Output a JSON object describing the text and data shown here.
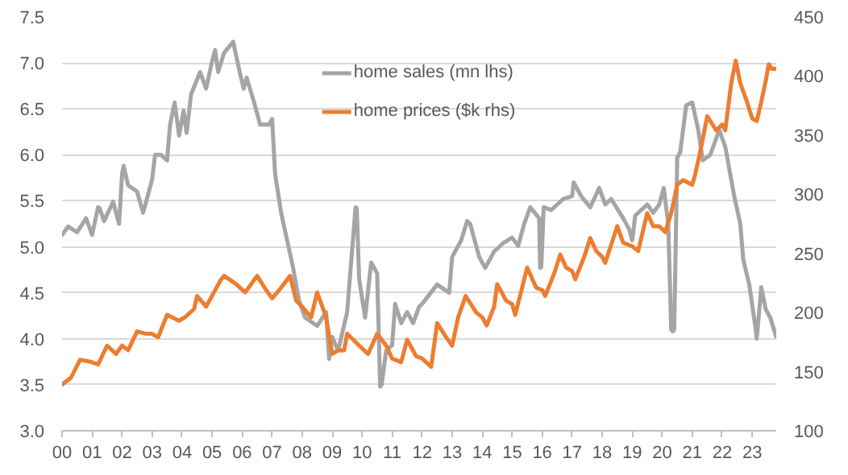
{
  "chart_data": {
    "type": "line",
    "xlim": [
      2000,
      2023.8
    ],
    "xticks": [
      {
        "value": 2000,
        "label": "00"
      },
      {
        "value": 2001,
        "label": "01"
      },
      {
        "value": 2002,
        "label": "02"
      },
      {
        "value": 2003,
        "label": "03"
      },
      {
        "value": 2004,
        "label": "04"
      },
      {
        "value": 2005,
        "label": "05"
      },
      {
        "value": 2006,
        "label": "06"
      },
      {
        "value": 2007,
        "label": "07"
      },
      {
        "value": 2008,
        "label": "08"
      },
      {
        "value": 2009,
        "label": "09"
      },
      {
        "value": 2010,
        "label": "10"
      },
      {
        "value": 2011,
        "label": "11"
      },
      {
        "value": 2012,
        "label": "12"
      },
      {
        "value": 2013,
        "label": "13"
      },
      {
        "value": 2014,
        "label": "14"
      },
      {
        "value": 2015,
        "label": "15"
      },
      {
        "value": 2016,
        "label": "16"
      },
      {
        "value": 2017,
        "label": "17"
      },
      {
        "value": 2018,
        "label": "18"
      },
      {
        "value": 2019,
        "label": "19"
      },
      {
        "value": 2020,
        "label": "20"
      },
      {
        "value": 2021,
        "label": "21"
      },
      {
        "value": 2022,
        "label": "22"
      },
      {
        "value": 2023,
        "label": "23"
      }
    ],
    "ylim": [
      3.0,
      7.5
    ],
    "yticks": [
      {
        "value": 3,
        "label": "3.0"
      },
      {
        "value": 3.5,
        "label": "3.5"
      },
      {
        "value": 4,
        "label": "4.0"
      },
      {
        "value": 4.5,
        "label": "4.5"
      },
      {
        "value": 5,
        "label": "5.0"
      },
      {
        "value": 5.5,
        "label": "5.5"
      },
      {
        "value": 6,
        "label": "6.0"
      },
      {
        "value": 6.5,
        "label": "6.5"
      },
      {
        "value": 7,
        "label": "7.0"
      },
      {
        "value": 7.5,
        "label": "7.5"
      }
    ],
    "y2lim": [
      100,
      450
    ],
    "y2ticks": [
      100,
      150,
      200,
      250,
      300,
      350,
      400,
      450
    ],
    "grid": "y",
    "legend": "top",
    "series": [
      {
        "name": "home sales (mn lhs)",
        "color": "#a5a5a5",
        "x": [
          2000.0,
          2000.2,
          2000.5,
          2000.8,
          2001.0,
          2001.2,
          2001.25,
          2001.4,
          2001.7,
          2001.9,
          2002.0,
          2002.05,
          2002.2,
          2002.5,
          2002.7,
          2003.0,
          2003.1,
          2003.3,
          2003.5,
          2003.6,
          2003.75,
          2003.9,
          2004.05,
          2004.15,
          2004.3,
          2004.45,
          2004.6,
          2004.8,
          2005.0,
          2005.1,
          2005.2,
          2005.4,
          2005.7,
          2005.9,
          2006.05,
          2006.15,
          2006.4,
          2006.6,
          2006.9,
          2007.0,
          2007.1,
          2007.3,
          2007.5,
          2007.7,
          2007.9,
          2008.1,
          2008.5,
          2008.8,
          2008.9,
          2009.0,
          2009.2,
          2009.5,
          2009.78,
          2009.82,
          2009.9,
          2010.1,
          2010.3,
          2010.5,
          2010.6,
          2010.65,
          2010.8,
          2011.0,
          2011.1,
          2011.3,
          2011.5,
          2011.7,
          2011.9,
          2012.0,
          2012.5,
          2012.9,
          2013.0,
          2013.3,
          2013.5,
          2013.6,
          2013.9,
          2014.1,
          2014.4,
          2014.7,
          2015.0,
          2015.2,
          2015.4,
          2015.6,
          2015.9,
          2015.93,
          2015.97,
          2016.05,
          2016.3,
          2016.5,
          2016.7,
          2017.0,
          2017.05,
          2017.3,
          2017.6,
          2017.9,
          2018.1,
          2018.3,
          2018.7,
          2018.9,
          2019.0,
          2019.1,
          2019.5,
          2019.7,
          2019.9,
          2020.05,
          2020.2,
          2020.3,
          2020.35,
          2020.4,
          2020.5,
          2020.6,
          2020.8,
          2021.0,
          2021.2,
          2021.35,
          2021.6,
          2021.9,
          2022.1,
          2022.2,
          2022.4,
          2022.6,
          2022.7,
          2022.9,
          2023.1,
          2023.15,
          2023.3,
          2023.45,
          2023.6,
          2023.8
        ],
        "values": [
          5.13,
          5.22,
          5.16,
          5.31,
          5.13,
          5.43,
          5.42,
          5.28,
          5.49,
          5.25,
          5.79,
          5.88,
          5.67,
          5.6,
          5.37,
          5.73,
          6.0,
          6.0,
          5.94,
          6.33,
          6.57,
          6.21,
          6.48,
          6.24,
          6.66,
          6.78,
          6.9,
          6.72,
          7.02,
          7.14,
          6.9,
          7.11,
          7.23,
          6.93,
          6.72,
          6.84,
          6.57,
          6.33,
          6.33,
          6.39,
          5.79,
          5.37,
          5.07,
          4.77,
          4.41,
          4.23,
          4.14,
          4.29,
          3.78,
          4.02,
          3.87,
          4.29,
          5.43,
          5.42,
          4.65,
          4.23,
          4.83,
          4.71,
          3.48,
          3.5,
          3.87,
          3.93,
          4.38,
          4.17,
          4.29,
          4.17,
          4.35,
          4.38,
          4.59,
          4.5,
          4.89,
          5.07,
          5.28,
          5.25,
          4.89,
          4.77,
          4.95,
          5.04,
          5.1,
          5.01,
          5.25,
          5.43,
          5.31,
          4.77,
          4.78,
          5.43,
          5.4,
          5.46,
          5.52,
          5.55,
          5.7,
          5.55,
          5.43,
          5.64,
          5.46,
          5.52,
          5.31,
          5.19,
          5.07,
          5.34,
          5.46,
          5.37,
          5.46,
          5.64,
          5.25,
          4.1,
          4.08,
          4.1,
          5.97,
          6.03,
          6.54,
          6.57,
          6.27,
          5.94,
          6.0,
          6.27,
          6.09,
          5.91,
          5.55,
          5.25,
          4.86,
          4.59,
          4.14,
          4.0,
          4.56,
          4.32,
          4.23,
          4.02
        ]
      },
      {
        "name": "home prices ($k rhs)",
        "color": "#ed7d31",
        "axis": "y2",
        "x": [
          2000.0,
          2000.3,
          2000.6,
          2001.0,
          2001.2,
          2001.5,
          2001.8,
          2002.0,
          2002.2,
          2002.5,
          2002.8,
          2003.0,
          2003.2,
          2003.5,
          2003.9,
          2004.1,
          2004.4,
          2004.5,
          2004.8,
          2005.3,
          2005.4,
          2005.8,
          2006.1,
          2006.5,
          2006.8,
          2007.0,
          2007.3,
          2007.6,
          2007.8,
          2008.0,
          2008.3,
          2008.5,
          2008.8,
          2009.0,
          2009.2,
          2009.4,
          2009.5,
          2009.9,
          2010.2,
          2010.5,
          2010.8,
          2011.0,
          2011.3,
          2011.5,
          2011.8,
          2012.0,
          2012.3,
          2012.5,
          2012.8,
          2013.0,
          2013.2,
          2013.45,
          2013.8,
          2014.0,
          2014.15,
          2014.4,
          2014.5,
          2014.8,
          2015.0,
          2015.1,
          2015.5,
          2015.8,
          2016.0,
          2016.1,
          2016.4,
          2016.6,
          2016.8,
          2017.0,
          2017.1,
          2017.4,
          2017.6,
          2017.8,
          2018.0,
          2018.1,
          2018.5,
          2018.7,
          2019.0,
          2019.2,
          2019.5,
          2019.7,
          2019.9,
          2020.1,
          2020.3,
          2020.5,
          2020.7,
          2021.0,
          2021.1,
          2021.3,
          2021.5,
          2021.8,
          2022.0,
          2022.1,
          2022.3,
          2022.45,
          2022.6,
          2022.8,
          2023.0,
          2023.15,
          2023.3,
          2023.45,
          2023.55,
          2023.65,
          2023.8
        ],
        "values": [
          139,
          145,
          160,
          158,
          156,
          172,
          165,
          172,
          168,
          184,
          182,
          182,
          179,
          198,
          193,
          196,
          203,
          214,
          205,
          228,
          231,
          224,
          217,
          231,
          219,
          212,
          221,
          231,
          210,
          205,
          196,
          217,
          196,
          165,
          168,
          168,
          182,
          172,
          165,
          182,
          172,
          161,
          158,
          177,
          163,
          161,
          154,
          191,
          179,
          172,
          196,
          214,
          200,
          196,
          189,
          205,
          224,
          210,
          207,
          198,
          238,
          221,
          219,
          214,
          233,
          249,
          238,
          235,
          228,
          247,
          263,
          252,
          247,
          242,
          273,
          259,
          256,
          252,
          284,
          273,
          273,
          268,
          284,
          308,
          312,
          308,
          317,
          340,
          366,
          354,
          359,
          354,
          394,
          413,
          394,
          380,
          364,
          362,
          378,
          396,
          410,
          406,
          406
        ]
      }
    ]
  }
}
